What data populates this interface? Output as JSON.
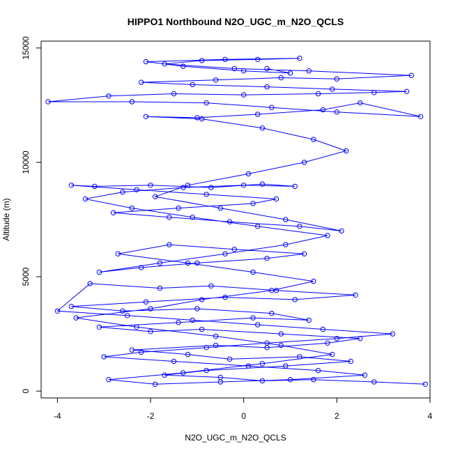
{
  "chart_data": {
    "type": "scatter",
    "title": "HIPPO1 Northbound N2O_UGC_m_N2O_QCLS",
    "xlabel": "N2O_UGC_m_N2O_QCLS",
    "ylabel": "Altitude (m)",
    "xlim": [
      -4.35,
      4.0
    ],
    "ylim": [
      -300,
      15300
    ],
    "x_ticks": [
      -4,
      -2,
      0,
      2,
      4
    ],
    "x_tick_labels": [
      "-4",
      "-2",
      "0",
      "2",
      "4"
    ],
    "y_ticks": [
      0,
      5000,
      10000,
      15000
    ],
    "y_tick_labels": [
      "0",
      "5000",
      "10000",
      "15000"
    ],
    "grid": false,
    "legend": "none",
    "connected": true,
    "series": [
      {
        "color": "#0000ff",
        "marker": "open-circle",
        "x": [
          3.9,
          2.8,
          1.5,
          0.4,
          -0.5,
          -1.7,
          -0.8,
          0.9,
          2.3,
          1.2,
          -0.3,
          -1.2,
          -2.4,
          -0.6,
          0.5,
          1.8,
          2.5,
          0.8,
          -0.9,
          -2.0,
          -3.1,
          -1.4,
          0.2,
          1.4,
          0.6,
          -1.0,
          -2.6,
          -3.7,
          -2.1,
          -0.4,
          1.1,
          2.4,
          0.7,
          -0.7,
          -1.8,
          -3.3,
          -4.0,
          -2.5,
          -1.1,
          0.3,
          1.7,
          3.2,
          2.0,
          0.5,
          -0.8,
          -2.2,
          -3.0,
          -1.5,
          0.1,
          1.6,
          2.6,
          1.0,
          -0.5,
          -1.9,
          -2.9,
          -1.3,
          0.4,
          1.9,
          0.8,
          -0.6,
          -2.3,
          -3.6,
          -2.0,
          -0.9,
          0.6,
          1.5,
          0.2,
          -1.2,
          -2.7,
          -1.6,
          -0.2,
          1.3,
          0.5,
          -1.0,
          -2.2,
          -3.1,
          -1.8,
          -0.4,
          0.9,
          1.8,
          0.3,
          -1.1,
          -2.4,
          -3.4,
          -2.6,
          -1.3,
          0.0,
          1.1,
          0.4,
          -0.7,
          -2.0,
          -3.2,
          -3.7,
          -2.3,
          -0.8,
          0.7,
          0.2,
          -1.4,
          -2.8,
          -1.6,
          -0.3,
          1.2,
          2.1,
          0.9,
          -0.5,
          -1.9,
          -1.2,
          0.1,
          1.3,
          2.2,
          1.5,
          0.4,
          -0.9,
          -2.1,
          -1.0,
          0.3,
          1.7,
          2.5,
          3.8,
          2.0,
          0.6,
          -0.8,
          -2.4,
          -4.2,
          -2.9,
          -1.5,
          0.0,
          1.6,
          2.8,
          3.5,
          1.9,
          0.5,
          -1.1,
          -2.2,
          -0.6,
          0.8,
          2.0,
          3.6,
          1.4,
          -0.2,
          -1.7,
          -0.9,
          0.3,
          1.2,
          -0.4,
          -2.1,
          -1.3,
          0.0,
          1.0,
          0.5
        ],
        "y": [
          300,
          400,
          500,
          450,
          600,
          700,
          900,
          1100,
          1300,
          1500,
          1400,
          1600,
          1800,
          2000,
          1900,
          2100,
          2300,
          2500,
          2700,
          2600,
          2800,
          3000,
          3200,
          3100,
          3400,
          3600,
          3500,
          3700,
          3900,
          4100,
          4000,
          4200,
          4400,
          4600,
          4500,
          4700,
          3500,
          3300,
          3100,
          2900,
          2700,
          2500,
          2300,
          2100,
          1900,
          1700,
          1500,
          1300,
          1100,
          900,
          700,
          500,
          400,
          300,
          500,
          800,
          1200,
          1600,
          2000,
          2400,
          2800,
          3200,
          3600,
          4000,
          4400,
          4800,
          5200,
          5600,
          6000,
          6400,
          6200,
          6000,
          5800,
          5600,
          5400,
          5200,
          5600,
          6000,
          6400,
          6800,
          7200,
          7600,
          8000,
          8400,
          8700,
          8900,
          9000,
          8950,
          9050,
          8900,
          9000,
          8950,
          9000,
          8800,
          8600,
          8400,
          8200,
          8000,
          7800,
          7600,
          7400,
          7200,
          7000,
          7500,
          8000,
          8500,
          9000,
          9500,
          10000,
          10500,
          11000,
          11500,
          11900,
          12000,
          11950,
          12100,
          12300,
          12600,
          12000,
          12200,
          12400,
          12600,
          12650,
          12650,
          12900,
          13000,
          12950,
          13000,
          13050,
          13100,
          13200,
          13300,
          13400,
          13500,
          13600,
          13700,
          13650,
          13800,
          14000,
          14100,
          14300,
          14450,
          14500,
          14550,
          14500,
          14400,
          14200,
          14000,
          13900,
          14100
        ]
      }
    ]
  }
}
